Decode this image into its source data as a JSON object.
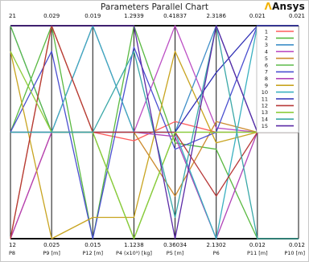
{
  "chart_data": {
    "type": "parallel_coordinates",
    "title": "Parameters Parallel Chart",
    "brand": "Ansys",
    "axes": [
      {
        "name": "P8",
        "max_label": "21",
        "min_label": "12",
        "max": 21,
        "min": 12
      },
      {
        "name": "P9  [m]",
        "max_label": "0.029",
        "min_label": "0.025",
        "max": 0.029,
        "min": 0.025
      },
      {
        "name": "P12  [m]",
        "max_label": "0.019",
        "min_label": "0.015",
        "max": 0.019,
        "min": 0.015
      },
      {
        "name": "P4  (x10³)  [kg]",
        "max_label": "1.2939",
        "min_label": "1.1238",
        "max": 1.2939,
        "min": 1.1238
      },
      {
        "name": "P5  [m]",
        "max_label": "0.41837",
        "min_label": "0.36034",
        "max": 0.41837,
        "min": 0.36034
      },
      {
        "name": "P6",
        "max_label": "2.3186",
        "min_label": "2.1302",
        "max": 2.3186,
        "min": 2.1302
      },
      {
        "name": "P11  [m]",
        "max_label": "0.021",
        "min_label": "0.012",
        "max": 0.021,
        "min": 0.012
      },
      {
        "name": "P10  [m]",
        "max_label": "0.021",
        "min_label": "0.012",
        "max": 0.021,
        "min": 0.012
      }
    ],
    "series": [
      {
        "name": "1",
        "color": "#ff5b5b",
        "values": [
          0.0,
          0.5,
          0.5,
          0.46,
          0.55,
          0.5,
          0.5,
          0.5
        ]
      },
      {
        "name": "2",
        "color": "#59b941",
        "values": [
          0.5,
          1.0,
          0.0,
          1.0,
          0.45,
          0.42,
          0.0,
          0.0
        ]
      },
      {
        "name": "3",
        "color": "#3f8fc8",
        "values": [
          1.0,
          0.5,
          0.5,
          0.5,
          0.5,
          1.0,
          0.5,
          0.5
        ]
      },
      {
        "name": "4",
        "color": "#bc4fc4",
        "values": [
          0.5,
          0.5,
          0.5,
          0.5,
          1.0,
          0.52,
          0.5,
          0.5
        ]
      },
      {
        "name": "5",
        "color": "#cc8a2e",
        "values": [
          0.0,
          1.0,
          0.5,
          0.5,
          0.2,
          0.55,
          0.5,
          0.5
        ]
      },
      {
        "name": "6",
        "color": "#5dbb4a",
        "values": [
          1.0,
          0.5,
          0.5,
          0.0,
          0.5,
          0.5,
          0.5,
          0.5
        ]
      },
      {
        "name": "7",
        "color": "#4a4fd0",
        "values": [
          0.5,
          0.88,
          0.0,
          0.9,
          0.42,
          0.5,
          1.0,
          1.0
        ]
      },
      {
        "name": "8",
        "color": "#b043b8",
        "values": [
          0.0,
          0.5,
          1.0,
          0.5,
          0.48,
          0.0,
          0.5,
          0.5
        ]
      },
      {
        "name": "9",
        "color": "#c8a420",
        "values": [
          0.88,
          0.0,
          0.1,
          0.1,
          0.88,
          0.45,
          0.5,
          0.5
        ]
      },
      {
        "name": "10",
        "color": "#3ab0c0",
        "values": [
          0.5,
          0.5,
          1.0,
          0.5,
          0.5,
          0.0,
          1.0,
          0.5
        ]
      },
      {
        "name": "11",
        "color": "#2f2fb5",
        "values": [
          0.5,
          0.5,
          0.5,
          0.5,
          0.5,
          0.78,
          1.0,
          1.0
        ]
      },
      {
        "name": "12",
        "color": "#b83a3a",
        "values": [
          0.0,
          1.0,
          0.5,
          0.5,
          0.5,
          0.2,
          0.5,
          0.5
        ]
      },
      {
        "name": "13",
        "color": "#8dcc3a",
        "values": [
          0.88,
          0.5,
          0.5,
          0.0,
          0.5,
          0.5,
          0.5,
          0.5
        ]
      },
      {
        "name": "14",
        "color": "#3aa8a8",
        "values": [
          0.5,
          0.5,
          0.5,
          0.88,
          0.1,
          1.0,
          0.0,
          0.0
        ]
      },
      {
        "name": "15",
        "color": "#5b2aa6",
        "values": [
          1.0,
          1.0,
          1.0,
          1.0,
          0.0,
          1.0,
          0.5,
          0.5
        ]
      }
    ],
    "legend_position": "top-right",
    "grid": false
  }
}
